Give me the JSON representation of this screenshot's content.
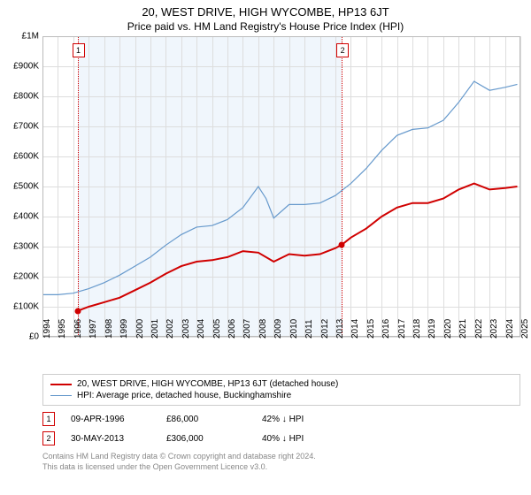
{
  "title": "20, WEST DRIVE, HIGH WYCOMBE, HP13 6JT",
  "subtitle": "Price paid vs. HM Land Registry's House Price Index (HPI)",
  "chart": {
    "type": "line",
    "background_color": "#ffffff",
    "shaded_color": "#f0f6fc",
    "grid_color": "#dddddd",
    "border_color": "#bbbbbb",
    "y": {
      "min": 0,
      "max": 1000000,
      "ticks": [
        0,
        100000,
        200000,
        300000,
        400000,
        500000,
        600000,
        700000,
        800000,
        900000,
        1000000
      ],
      "labels": [
        "£0",
        "£100K",
        "£200K",
        "£300K",
        "£400K",
        "£500K",
        "£600K",
        "£700K",
        "£800K",
        "£900K",
        "£1M"
      ]
    },
    "x": {
      "min": 1994,
      "max": 2025,
      "ticks": [
        1994,
        1995,
        1996,
        1997,
        1998,
        1999,
        2000,
        2001,
        2002,
        2003,
        2004,
        2005,
        2006,
        2007,
        2008,
        2009,
        2010,
        2011,
        2012,
        2013,
        2014,
        2015,
        2016,
        2017,
        2018,
        2019,
        2020,
        2021,
        2022,
        2023,
        2024,
        2025
      ]
    },
    "shaded_range": [
      1996.27,
      2013.41
    ],
    "series": [
      {
        "name": "property",
        "label": "20, WEST DRIVE, HIGH WYCOMBE, HP13 6JT (detached house)",
        "color": "#d00000",
        "width": 2,
        "data": [
          [
            1996.27,
            86000
          ],
          [
            1997,
            100000
          ],
          [
            1998,
            115000
          ],
          [
            1999,
            130000
          ],
          [
            2000,
            155000
          ],
          [
            2001,
            180000
          ],
          [
            2002,
            210000
          ],
          [
            2003,
            235000
          ],
          [
            2004,
            250000
          ],
          [
            2005,
            255000
          ],
          [
            2006,
            265000
          ],
          [
            2007,
            285000
          ],
          [
            2008,
            280000
          ],
          [
            2009,
            250000
          ],
          [
            2010,
            275000
          ],
          [
            2011,
            270000
          ],
          [
            2012,
            275000
          ],
          [
            2013,
            295000
          ],
          [
            2013.41,
            306000
          ],
          [
            2014,
            330000
          ],
          [
            2015,
            360000
          ],
          [
            2016,
            400000
          ],
          [
            2017,
            430000
          ],
          [
            2018,
            445000
          ],
          [
            2019,
            445000
          ],
          [
            2020,
            460000
          ],
          [
            2021,
            490000
          ],
          [
            2022,
            510000
          ],
          [
            2023,
            490000
          ],
          [
            2024,
            495000
          ],
          [
            2024.8,
            500000
          ]
        ]
      },
      {
        "name": "hpi",
        "label": "HPI: Average price, detached house, Buckinghamshire",
        "color": "#6699cc",
        "width": 1.2,
        "data": [
          [
            1994,
            140000
          ],
          [
            1995,
            140000
          ],
          [
            1996,
            145000
          ],
          [
            1997,
            160000
          ],
          [
            1998,
            180000
          ],
          [
            1999,
            205000
          ],
          [
            2000,
            235000
          ],
          [
            2001,
            265000
          ],
          [
            2002,
            305000
          ],
          [
            2003,
            340000
          ],
          [
            2004,
            365000
          ],
          [
            2005,
            370000
          ],
          [
            2006,
            390000
          ],
          [
            2007,
            430000
          ],
          [
            2008,
            500000
          ],
          [
            2008.5,
            460000
          ],
          [
            2009,
            395000
          ],
          [
            2010,
            440000
          ],
          [
            2011,
            440000
          ],
          [
            2012,
            445000
          ],
          [
            2013,
            470000
          ],
          [
            2014,
            510000
          ],
          [
            2015,
            560000
          ],
          [
            2016,
            620000
          ],
          [
            2017,
            670000
          ],
          [
            2018,
            690000
          ],
          [
            2019,
            695000
          ],
          [
            2020,
            720000
          ],
          [
            2021,
            780000
          ],
          [
            2022,
            850000
          ],
          [
            2023,
            820000
          ],
          [
            2024,
            830000
          ],
          [
            2024.8,
            840000
          ]
        ]
      }
    ],
    "markers": [
      {
        "id": "1",
        "x": 1996.27,
        "y": 86000,
        "color": "#d00000"
      },
      {
        "id": "2",
        "x": 2013.41,
        "y": 306000,
        "color": "#d00000"
      }
    ]
  },
  "legend": {
    "items": [
      {
        "color": "#d00000",
        "width": 2,
        "label": "20, WEST DRIVE, HIGH WYCOMBE, HP13 6JT (detached house)"
      },
      {
        "color": "#6699cc",
        "width": 1,
        "label": "HPI: Average price, detached house, Buckinghamshire"
      }
    ]
  },
  "transactions": [
    {
      "marker": "1",
      "date": "09-APR-1996",
      "price": "£86,000",
      "pct": "42%",
      "arrow": "↓",
      "rel": "HPI"
    },
    {
      "marker": "2",
      "date": "30-MAY-2013",
      "price": "£306,000",
      "pct": "40%",
      "arrow": "↓",
      "rel": "HPI"
    }
  ],
  "footer": {
    "line1": "Contains HM Land Registry data © Crown copyright and database right 2024.",
    "line2": "This data is licensed under the Open Government Licence v3.0."
  }
}
